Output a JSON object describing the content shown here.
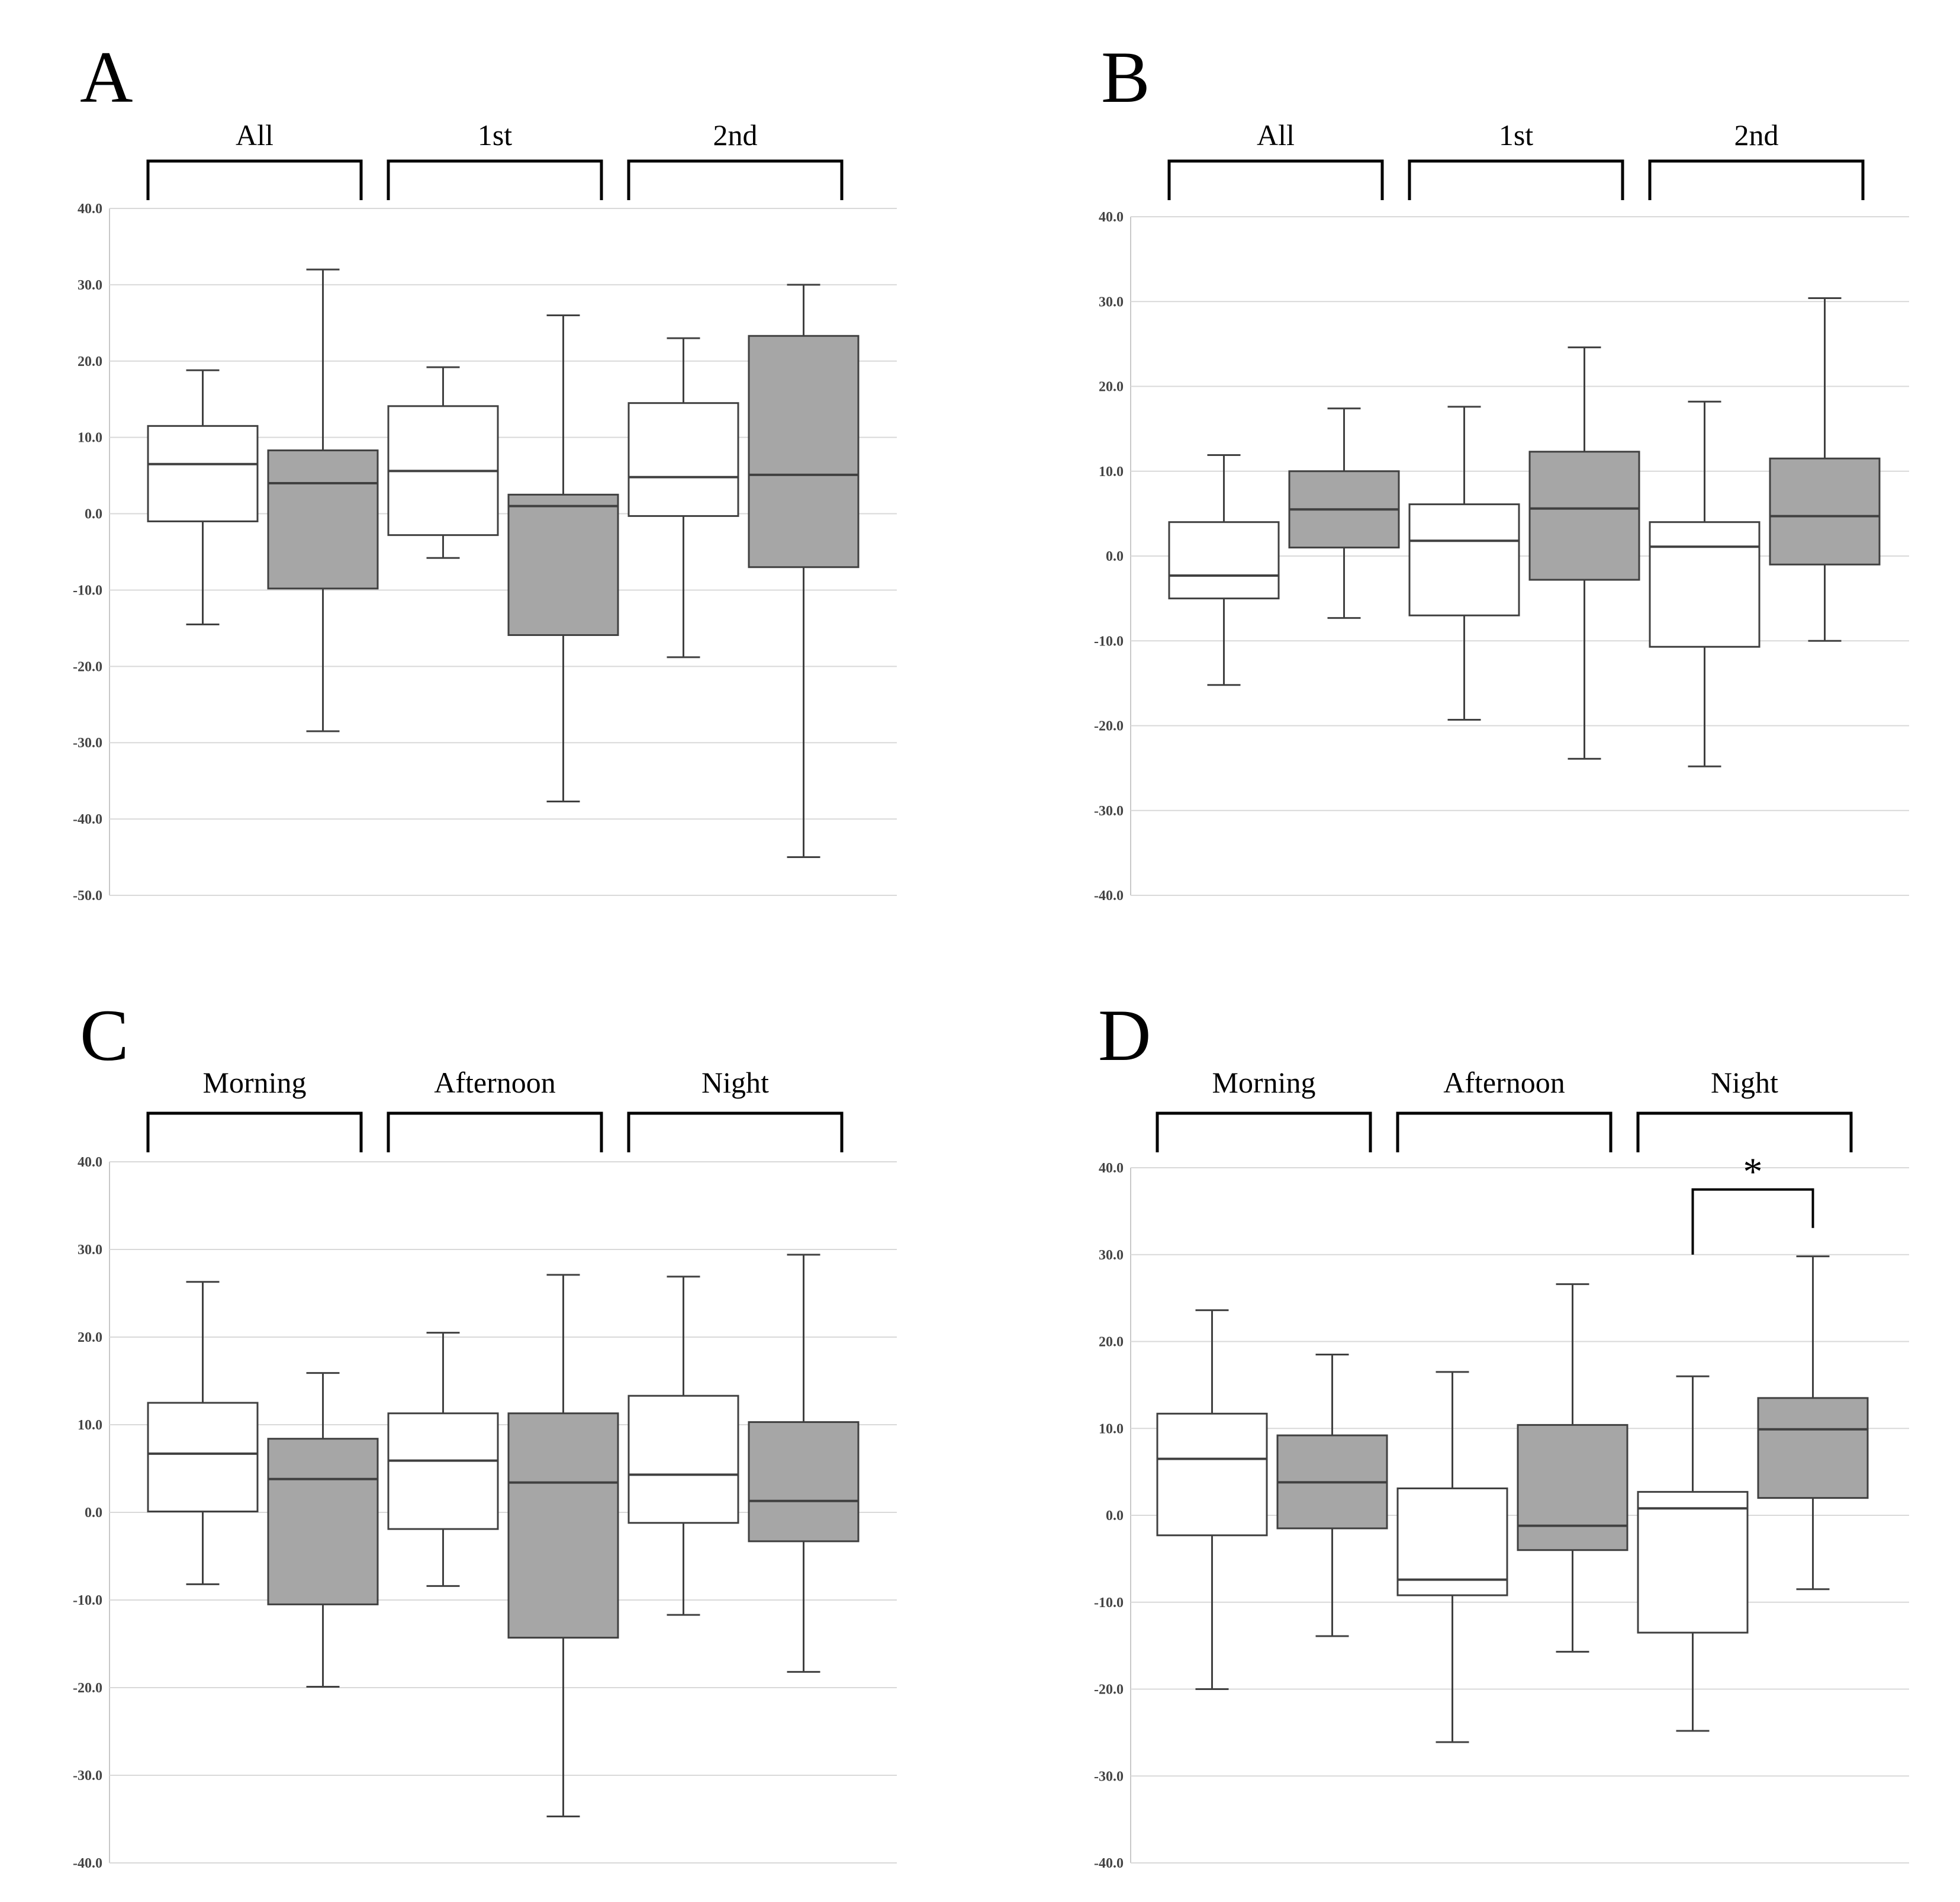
{
  "chart_data": [
    {
      "panel": "A",
      "type": "box",
      "groups": [
        "All",
        "1st",
        "2nd"
      ],
      "ylim": [
        -50,
        40
      ],
      "ticks": [
        40,
        30,
        20,
        10,
        0,
        -10,
        -20,
        -30,
        -40,
        -50
      ],
      "tick_labels": [
        "40.0",
        "30.0",
        "20.0",
        "10.0",
        "0.0",
        "-10.0",
        "-20.0",
        "-30.0",
        "-40.0",
        "-50.0"
      ],
      "boxes": [
        {
          "group": "All",
          "fill": "white",
          "min": -14.5,
          "q1": -1.0,
          "median": 6.5,
          "q3": 11.5,
          "max": 18.8
        },
        {
          "group": "All",
          "fill": "gray",
          "min": -28.5,
          "q1": -9.8,
          "median": 4.0,
          "q3": 8.3,
          "max": 32.0
        },
        {
          "group": "1st",
          "fill": "white",
          "min": -5.8,
          "q1": -2.8,
          "median": 5.6,
          "q3": 14.1,
          "max": 19.2
        },
        {
          "group": "1st",
          "fill": "gray",
          "min": -37.7,
          "q1": -15.9,
          "median": 1.0,
          "q3": 2.5,
          "max": 26.0
        },
        {
          "group": "2nd",
          "fill": "white",
          "min": -18.8,
          "q1": -0.3,
          "median": 4.8,
          "q3": 14.5,
          "max": 23.0
        },
        {
          "group": "2nd",
          "fill": "gray",
          "min": -45.0,
          "q1": -7.0,
          "median": 5.1,
          "q3": 23.3,
          "max": 30.0
        }
      ],
      "significance": null
    },
    {
      "panel": "B",
      "type": "box",
      "groups": [
        "All",
        "1st",
        "2nd"
      ],
      "ylim": [
        -40,
        40
      ],
      "ticks": [
        40,
        30,
        20,
        10,
        0,
        -10,
        -20,
        -30,
        -40
      ],
      "tick_labels": [
        "40.0",
        "30.0",
        "20.0",
        "10.0",
        "0.0",
        "-10.0",
        "-20.0",
        "-30.0",
        "-40.0"
      ],
      "boxes": [
        {
          "group": "All",
          "fill": "white",
          "min": -15.2,
          "q1": -5.0,
          "median": -2.3,
          "q3": 4.0,
          "max": 11.9
        },
        {
          "group": "All",
          "fill": "gray",
          "min": -7.3,
          "q1": 1.0,
          "median": 5.5,
          "q3": 10.0,
          "max": 17.4
        },
        {
          "group": "1st",
          "fill": "white",
          "min": -19.3,
          "q1": -7.0,
          "median": 1.8,
          "q3": 6.1,
          "max": 17.6
        },
        {
          "group": "1st",
          "fill": "gray",
          "min": -23.9,
          "q1": -2.8,
          "median": 5.6,
          "q3": 12.3,
          "max": 24.6
        },
        {
          "group": "2nd",
          "fill": "white",
          "min": -24.8,
          "q1": -10.7,
          "median": 1.1,
          "q3": 4.0,
          "max": 18.2
        },
        {
          "group": "2nd",
          "fill": "gray",
          "min": -10.0,
          "q1": -1.0,
          "median": 4.7,
          "q3": 11.5,
          "max": 30.4
        }
      ],
      "significance": null
    },
    {
      "panel": "C",
      "type": "box",
      "groups": [
        "Morning",
        "Afternoon",
        "Night"
      ],
      "ylim": [
        -40,
        40
      ],
      "ticks": [
        40,
        30,
        20,
        10,
        0,
        -10,
        -20,
        -30,
        -40
      ],
      "tick_labels": [
        "40.0",
        "30.0",
        "20.0",
        "10.0",
        "0.0",
        "-10.0",
        "-20.0",
        "-30.0",
        "-40.0"
      ],
      "boxes": [
        {
          "group": "Morning",
          "fill": "white",
          "min": -8.2,
          "q1": 0.1,
          "median": 6.7,
          "q3": 12.5,
          "max": 26.3
        },
        {
          "group": "Morning",
          "fill": "gray",
          "min": -19.9,
          "q1": -10.5,
          "median": 3.8,
          "q3": 8.4,
          "max": 15.9
        },
        {
          "group": "Afternoon",
          "fill": "white",
          "min": -8.4,
          "q1": -1.9,
          "median": 5.9,
          "q3": 11.3,
          "max": 20.5
        },
        {
          "group": "Afternoon",
          "fill": "gray",
          "min": -34.7,
          "q1": -14.3,
          "median": 3.4,
          "q3": 11.3,
          "max": 27.1
        },
        {
          "group": "Night",
          "fill": "white",
          "min": -11.7,
          "q1": -1.2,
          "median": 4.3,
          "q3": 13.3,
          "max": 26.9
        },
        {
          "group": "Night",
          "fill": "gray",
          "min": -18.2,
          "q1": -3.3,
          "median": 1.3,
          "q3": 10.3,
          "max": 29.4
        }
      ],
      "significance": null
    },
    {
      "panel": "D",
      "type": "box",
      "groups": [
        "Morning",
        "Afternoon",
        "Night"
      ],
      "ylim": [
        -40,
        40
      ],
      "ticks": [
        40,
        30,
        20,
        10,
        0,
        -10,
        -20,
        -30,
        -40
      ],
      "tick_labels": [
        "40.0",
        "30.0",
        "20.0",
        "10.0",
        "0.0",
        "-10.0",
        "-20.0",
        "-30.0",
        "-40.0"
      ],
      "boxes": [
        {
          "group": "Morning",
          "fill": "white",
          "min": -20.0,
          "q1": -2.3,
          "median": 6.5,
          "q3": 11.7,
          "max": 23.6
        },
        {
          "group": "Morning",
          "fill": "gray",
          "min": -13.9,
          "q1": -1.5,
          "median": 3.8,
          "q3": 9.2,
          "max": 18.5
        },
        {
          "group": "Afternoon",
          "fill": "white",
          "min": -26.1,
          "q1": -9.2,
          "median": -7.4,
          "q3": 3.1,
          "max": 16.5
        },
        {
          "group": "Afternoon",
          "fill": "gray",
          "min": -15.7,
          "q1": -4.0,
          "median": -1.2,
          "q3": 10.4,
          "max": 26.6
        },
        {
          "group": "Night",
          "fill": "white",
          "min": -24.8,
          "q1": -13.5,
          "median": 0.8,
          "q3": 2.7,
          "max": 16.0
        },
        {
          "group": "Night",
          "fill": "gray",
          "min": -8.5,
          "q1": 2.0,
          "median": 9.9,
          "q3": 13.5,
          "max": 29.8
        }
      ],
      "significance": {
        "label": "*",
        "between": [
          4,
          5
        ],
        "value": 30.0
      }
    }
  ],
  "colors": {
    "white_box": "#ffffff",
    "gray_box": "#a6a6a6",
    "box_outline": "#404040",
    "grid": "#d9d9d9"
  }
}
